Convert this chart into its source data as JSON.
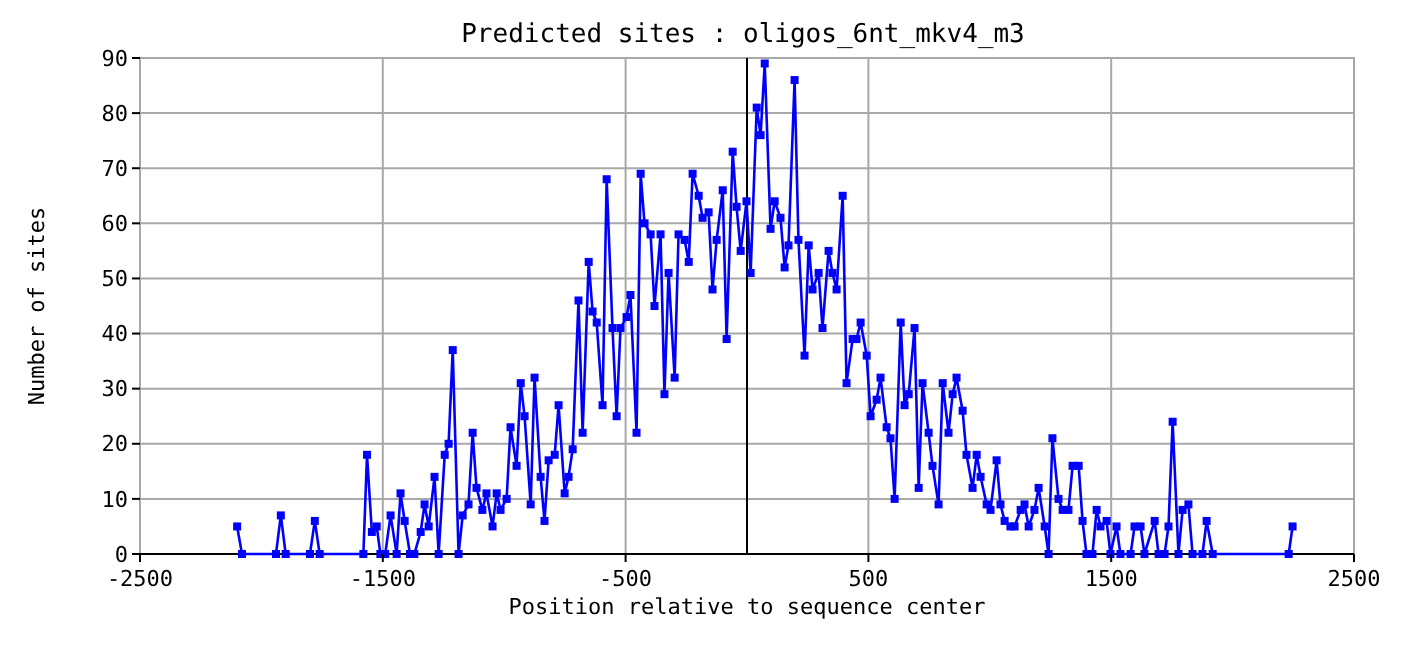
{
  "chart_data": {
    "type": "line",
    "title": "Predicted sites : oligos_6nt_mkv4_m3",
    "xlabel": "Position relative to sequence center",
    "ylabel": "Number of sites",
    "xlim": [
      -2500,
      2500
    ],
    "xticks": [
      -2500,
      -1500,
      -500,
      500,
      1500,
      2500
    ],
    "ylim": [
      0,
      90
    ],
    "yticks": [
      0,
      10,
      20,
      30,
      40,
      50,
      60,
      70,
      80,
      90
    ],
    "grid": true,
    "marker": "square",
    "line_style": "solid",
    "ref_lines": [
      {
        "axis": "x",
        "value": 0,
        "color": "#000000"
      }
    ],
    "series": [
      {
        "color": "#0000ff",
        "x": [
          -2100,
          -2080,
          -1940,
          -1920,
          -1900,
          -1800,
          -1780,
          -1760,
          -1580,
          -1565,
          -1545,
          -1525,
          -1510,
          -1490,
          -1468,
          -1443,
          -1427,
          -1410,
          -1388,
          -1370,
          -1344,
          -1328,
          -1311,
          -1287,
          -1270,
          -1245,
          -1229,
          -1212,
          -1188,
          -1171,
          -1147,
          -1130,
          -1114,
          -1090,
          -1073,
          -1048,
          -1031,
          -1015,
          -990,
          -974,
          -949,
          -932,
          -916,
          -891,
          -875,
          -850,
          -834,
          -817,
          -792,
          -776,
          -751,
          -735,
          -718,
          -694,
          -677,
          -652,
          -636,
          -619,
          -595,
          -578,
          -554,
          -537,
          -521,
          -496,
          -480,
          -455,
          -438,
          -422,
          -397,
          -381,
          -356,
          -340,
          -323,
          -298,
          -282,
          -257,
          -240,
          -224,
          -199,
          -183,
          -158,
          -142,
          -125,
          -100,
          -84,
          -59,
          -43,
          -26,
          -2,
          15,
          40,
          56,
          73,
          97,
          114,
          138,
          155,
          171,
          196,
          212,
          237,
          254,
          270,
          295,
          311,
          336,
          352,
          369,
          394,
          410,
          435,
          451,
          468,
          493,
          509,
          534,
          550,
          575,
          591,
          608,
          633,
          649,
          666,
          690,
          707,
          723,
          748,
          764,
          789,
          806,
          830,
          847,
          863,
          888,
          904,
          929,
          946,
          962,
          987,
          1003,
          1028,
          1044,
          1061,
          1085,
          1102,
          1127,
          1143,
          1160,
          1184,
          1201,
          1226,
          1242,
          1258,
          1283,
          1300,
          1324,
          1341,
          1366,
          1382,
          1398,
          1423,
          1440,
          1456,
          1481,
          1497,
          1522,
          1538,
          1580,
          1596,
          1621,
          1637,
          1679,
          1695,
          1720,
          1736,
          1753,
          1777,
          1794,
          1818,
          1835,
          1876,
          1893,
          1918,
          2231,
          2247
        ],
        "values": [
          5,
          0,
          0,
          7,
          0,
          0,
          6,
          0,
          0,
          18,
          4,
          5,
          0,
          0,
          7,
          0,
          11,
          6,
          0,
          0,
          4,
          9,
          5,
          14,
          0,
          18,
          20,
          37,
          0,
          7,
          9,
          22,
          12,
          8,
          11,
          5,
          11,
          8,
          10,
          23,
          16,
          31,
          25,
          9,
          32,
          14,
          6,
          17,
          18,
          27,
          11,
          14,
          19,
          46,
          22,
          53,
          44,
          42,
          27,
          68,
          41,
          25,
          41,
          43,
          47,
          22,
          69,
          60,
          58,
          45,
          58,
          29,
          51,
          32,
          58,
          57,
          53,
          69,
          65,
          61,
          62,
          48,
          57,
          66,
          39,
          73,
          63,
          55,
          64,
          51,
          81,
          76,
          89,
          59,
          64,
          61,
          52,
          56,
          86,
          57,
          36,
          56,
          48,
          51,
          41,
          55,
          51,
          48,
          65,
          31,
          39,
          39,
          42,
          36,
          25,
          28,
          32,
          23,
          21,
          10,
          42,
          27,
          29,
          41,
          12,
          31,
          22,
          16,
          9,
          31,
          22,
          29,
          32,
          26,
          18,
          12,
          18,
          14,
          9,
          8,
          17,
          9,
          6,
          5,
          5,
          8,
          9,
          5,
          8,
          12,
          5,
          0,
          21,
          10,
          8,
          8,
          16,
          16,
          6,
          0,
          0,
          8,
          5,
          6,
          0,
          5,
          0,
          0,
          5,
          5,
          0,
          6,
          0,
          0,
          5,
          24,
          0,
          8,
          9,
          0,
          0,
          6,
          0,
          0,
          5
        ]
      }
    ]
  }
}
